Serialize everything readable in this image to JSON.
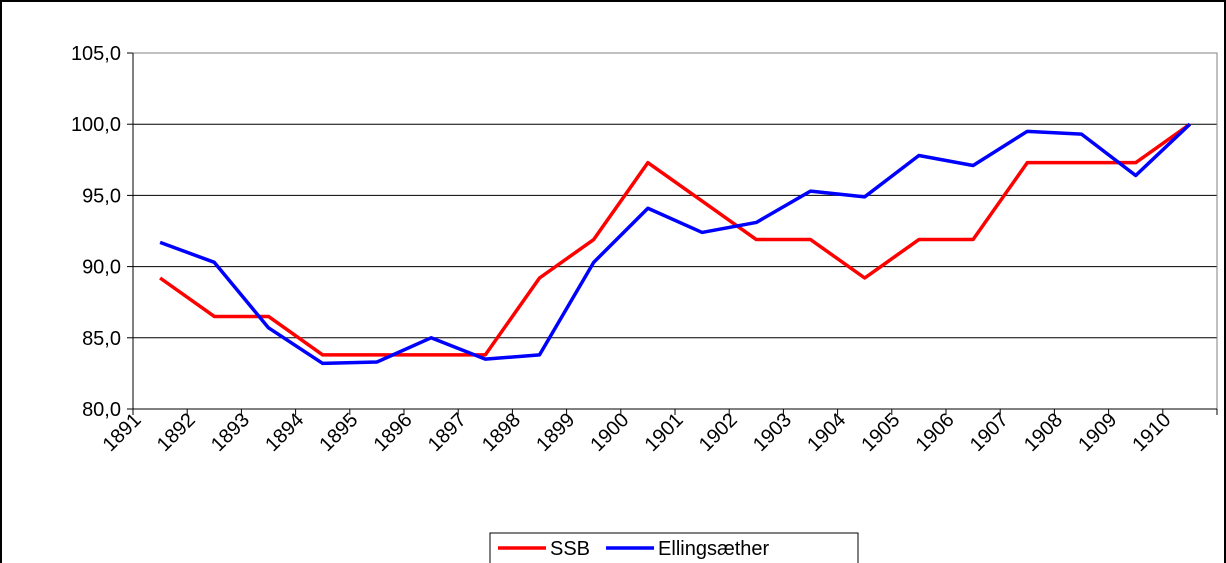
{
  "chart_data": {
    "type": "line",
    "categories": [
      "1891",
      "1892",
      "1893",
      "1894",
      "1895",
      "1896",
      "1897",
      "1898",
      "1899",
      "1900",
      "1901",
      "1902",
      "1903",
      "1904",
      "1905",
      "1906",
      "1907",
      "1908",
      "1909",
      "1910"
    ],
    "series": [
      {
        "name": "SSB",
        "color": "#ff0000",
        "values": [
          89.2,
          86.5,
          86.5,
          83.8,
          83.8,
          83.8,
          83.8,
          89.2,
          91.9,
          97.3,
          94.6,
          91.9,
          91.9,
          89.2,
          91.9,
          91.9,
          97.3,
          97.3,
          97.3,
          100.0
        ]
      },
      {
        "name": "Ellingsæther",
        "color": "#0000ff",
        "values": [
          91.7,
          90.3,
          85.7,
          83.2,
          83.3,
          85.0,
          83.5,
          83.8,
          90.3,
          94.1,
          92.4,
          93.1,
          95.3,
          94.9,
          97.8,
          97.1,
          99.5,
          99.3,
          96.4,
          100.0
        ]
      }
    ],
    "ylim": [
      80,
      105
    ],
    "yticks": [
      {
        "value": 80,
        "label": "80,0"
      },
      {
        "value": 85,
        "label": "85,0"
      },
      {
        "value": 90,
        "label": "90,0"
      },
      {
        "value": 95,
        "label": "95,0"
      },
      {
        "value": 100,
        "label": "100,0"
      },
      {
        "value": 105,
        "label": "105,0"
      }
    ],
    "grid": true,
    "legend": "bottom"
  }
}
